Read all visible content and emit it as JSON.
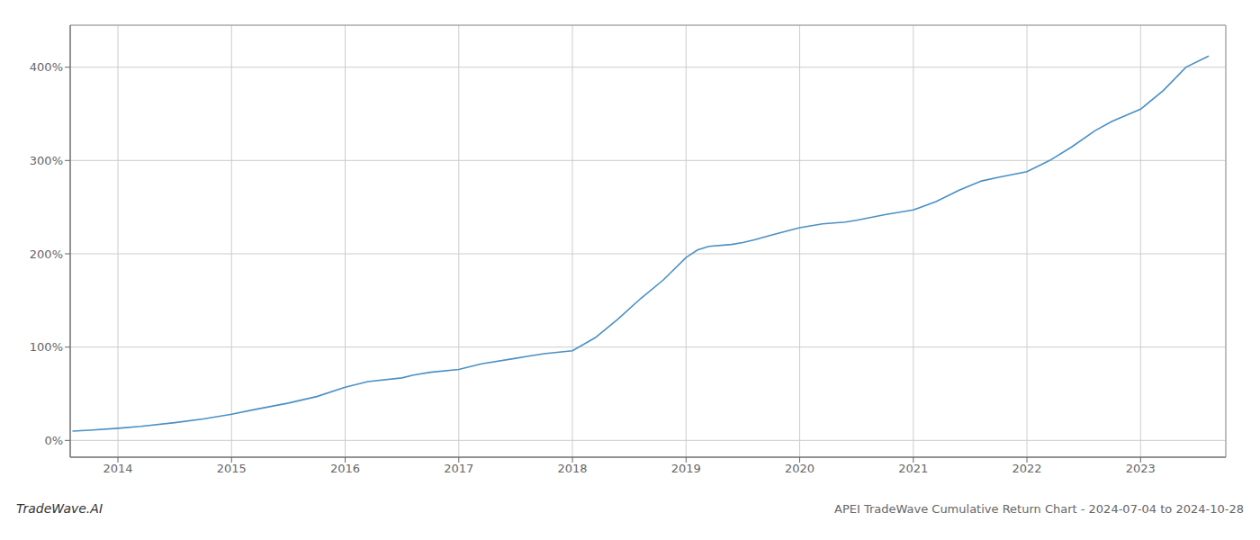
{
  "chart_data": {
    "type": "line",
    "title": "APEI TradeWave Cumulative Return Chart - 2024-07-04 to 2024-10-28",
    "annotations": [
      "TradeWave.AI"
    ],
    "x": [
      2013.6,
      2013.75,
      2014.0,
      2014.2,
      2014.5,
      2014.75,
      2015.0,
      2015.2,
      2015.5,
      2015.75,
      2016.0,
      2016.2,
      2016.5,
      2016.6,
      2016.75,
      2017.0,
      2017.2,
      2017.5,
      2017.6,
      2017.75,
      2018.0,
      2018.2,
      2018.4,
      2018.6,
      2018.8,
      2019.0,
      2019.1,
      2019.2,
      2019.4,
      2019.5,
      2019.6,
      2019.75,
      2020.0,
      2020.2,
      2020.4,
      2020.5,
      2020.75,
      2021.0,
      2021.2,
      2021.4,
      2021.6,
      2021.75,
      2022.0,
      2022.2,
      2022.4,
      2022.6,
      2022.75,
      2023.0,
      2023.2,
      2023.4,
      2023.6
    ],
    "values": [
      10,
      11,
      13,
      15,
      19,
      23,
      28,
      33,
      40,
      47,
      57,
      63,
      67,
      70,
      73,
      76,
      82,
      88,
      90,
      93,
      96,
      110,
      130,
      152,
      172,
      196,
      204,
      208,
      210,
      212,
      215,
      220,
      228,
      232,
      234,
      236,
      242,
      247,
      256,
      268,
      278,
      282,
      288,
      300,
      315,
      332,
      342,
      355,
      375,
      400,
      412
    ],
    "color": "#4a90c4",
    "xlim": [
      2013.58,
      2023.75
    ],
    "xticks": [
      2014,
      2015,
      2016,
      2017,
      2018,
      2019,
      2020,
      2021,
      2022,
      2023
    ],
    "ylim": [
      -18,
      445
    ],
    "yticks": [
      {
        "value": 0,
        "label": "0%"
      },
      {
        "value": 100,
        "label": "100%"
      },
      {
        "value": 200,
        "label": "200%"
      },
      {
        "value": 300,
        "label": "300%"
      },
      {
        "value": 400,
        "label": "400%"
      }
    ],
    "grid": true
  }
}
